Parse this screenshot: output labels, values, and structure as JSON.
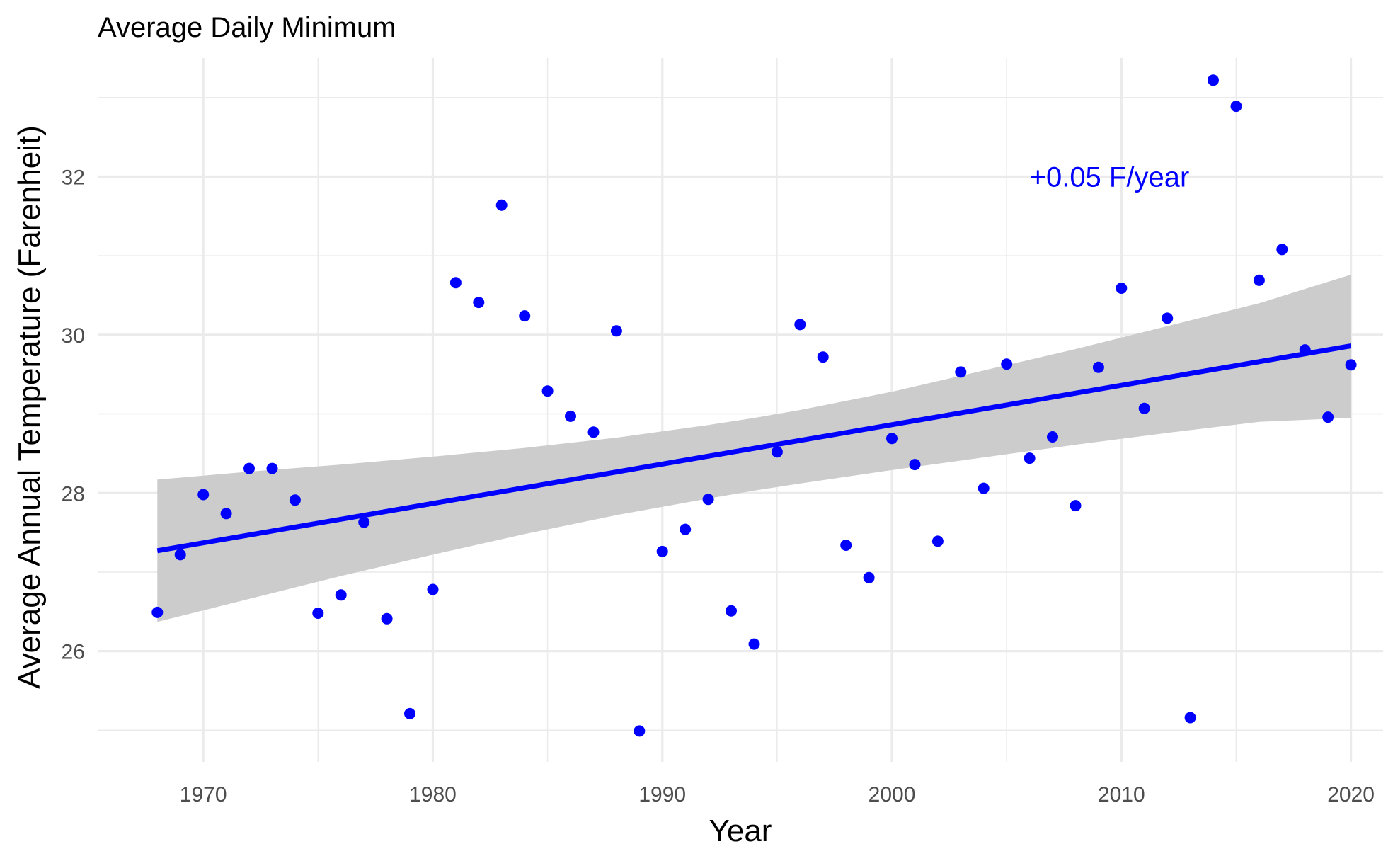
{
  "chart_data": {
    "type": "scatter",
    "title": "Average Daily Minimum",
    "xlabel": "Year",
    "ylabel": "Average Annual Temperature (Farenheit)",
    "xlim": [
      1965.4,
      2021.4
    ],
    "ylim": [
      24.6,
      33.5
    ],
    "x_ticks": [
      1970,
      1980,
      1990,
      2000,
      2010,
      2020
    ],
    "y_ticks": [
      26,
      28,
      30,
      32
    ],
    "grid": true,
    "colors": {
      "points": "#0000ff",
      "trend_line": "#0000ff",
      "ribbon": "#cccccc",
      "annotation": "#0000ff",
      "grid": "#ebebeb"
    },
    "annotation": {
      "text": "+0.05 F/year",
      "x": 2006,
      "y": 32.0
    },
    "series": [
      {
        "type": "scatter",
        "x": [
          1968,
          1969,
          1970,
          1971,
          1972,
          1973,
          1974,
          1975,
          1976,
          1977,
          1978,
          1979,
          1980,
          1981,
          1982,
          1983,
          1984,
          1985,
          1986,
          1987,
          1988,
          1989,
          1990,
          1991,
          1992,
          1993,
          1994,
          1995,
          1996,
          1997,
          1998,
          1999,
          2000,
          2001,
          2002,
          2003,
          2004,
          2005,
          2006,
          2007,
          2008,
          2009,
          2010,
          2011,
          2012,
          2013,
          2014,
          2015,
          2016,
          2017,
          2018,
          2019,
          2020
        ],
        "y": [
          26.49,
          27.22,
          27.98,
          27.74,
          28.31,
          28.31,
          27.91,
          26.48,
          26.71,
          27.63,
          26.41,
          25.21,
          26.78,
          30.66,
          30.41,
          31.64,
          30.24,
          29.29,
          28.97,
          28.77,
          30.05,
          24.99,
          27.26,
          27.54,
          27.92,
          26.51,
          26.09,
          28.52,
          30.13,
          29.72,
          27.34,
          26.93,
          28.69,
          28.36,
          27.39,
          29.53,
          28.06,
          29.63,
          28.44,
          28.71,
          27.84,
          29.59,
          30.59,
          29.07,
          30.21,
          25.16,
          33.22,
          32.89,
          30.69,
          31.08,
          29.81,
          28.96,
          29.62
        ]
      },
      {
        "type": "trend_line",
        "x": [
          1968,
          2020
        ],
        "y": [
          27.27,
          29.86
        ]
      },
      {
        "type": "confidence_band",
        "x": [
          1968,
          1972,
          1976,
          1980,
          1984,
          1988,
          1992,
          1994,
          1996,
          2000,
          2004,
          2008,
          2012,
          2016,
          2020
        ],
        "lower": [
          26.37,
          26.66,
          26.95,
          27.22,
          27.48,
          27.72,
          27.93,
          28.03,
          28.12,
          28.29,
          28.45,
          28.61,
          28.76,
          28.9,
          28.95
        ],
        "upper": [
          28.17,
          28.27,
          28.36,
          28.46,
          28.57,
          28.7,
          28.86,
          28.95,
          29.05,
          29.28,
          29.55,
          29.82,
          30.11,
          30.4,
          30.76
        ]
      }
    ]
  }
}
